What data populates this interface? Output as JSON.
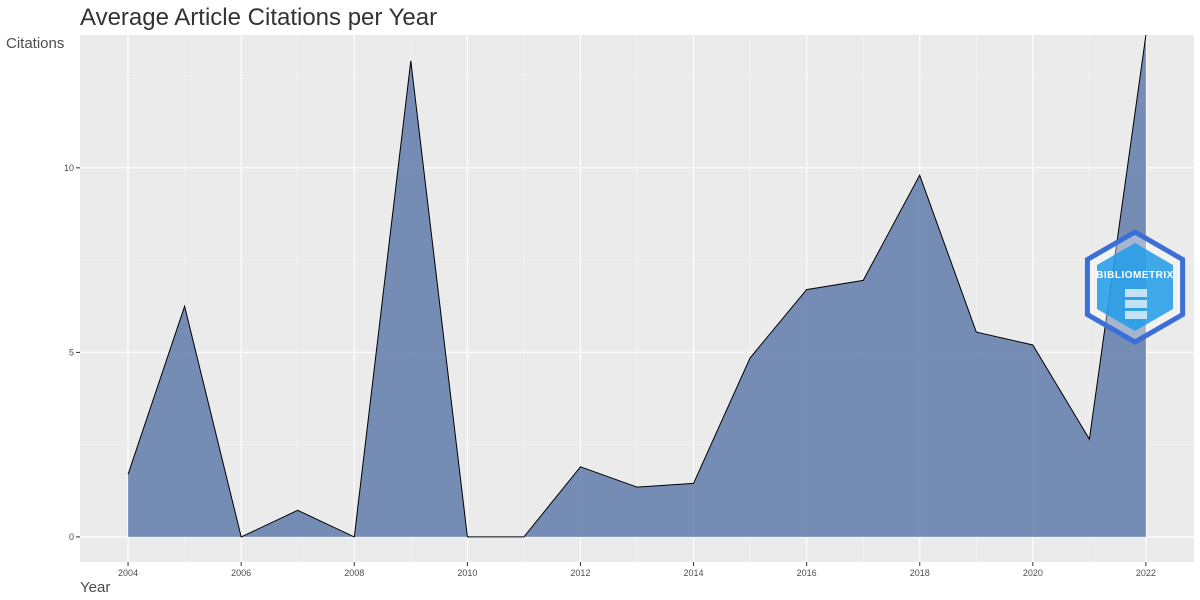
{
  "chart_data": {
    "type": "area",
    "title": "Average Article Citations per Year",
    "xlabel": "Year",
    "ylabel": "Citations",
    "x": [
      2004,
      2005,
      2006,
      2007,
      2008,
      2009,
      2010,
      2011,
      2012,
      2013,
      2014,
      2015,
      2016,
      2017,
      2018,
      2019,
      2020,
      2021,
      2022
    ],
    "series": [
      {
        "values": [
          1.7,
          6.25,
          0,
          0.72,
          0,
          12.9,
          0,
          0,
          1.9,
          1.35,
          1.45,
          4.85,
          6.7,
          6.95,
          9.8,
          5.55,
          5.2,
          2.65,
          13.6
        ]
      }
    ],
    "xlim": [
      2003.15,
      2022.85
    ],
    "ylim": [
      -0.68,
      13.6
    ],
    "x_ticks": [
      2004,
      2006,
      2008,
      2010,
      2012,
      2014,
      2016,
      2018,
      2020,
      2022
    ],
    "y_ticks": [
      0,
      5,
      10
    ],
    "grid": true,
    "colors": {
      "area": "#5a76a8",
      "line": "#000000",
      "panel": "#ebebeb"
    },
    "watermark": {
      "text": "BIBLIOMETRIX",
      "icon": "bibliometrix-logo"
    }
  }
}
